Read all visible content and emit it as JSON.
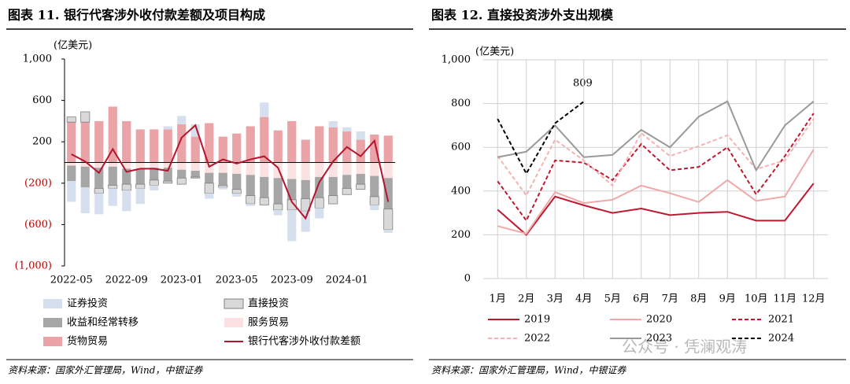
{
  "chart_data": [
    {
      "type": "bar",
      "title": "图表 11. 银行代客涉外收付款差额及项目构成",
      "unit": "(亿美元)",
      "categories": [
        "2022-05",
        null,
        null,
        null,
        "2022-09",
        null,
        null,
        null,
        "2023-01",
        null,
        null,
        null,
        "2023-05",
        null,
        null,
        null,
        "2023-09",
        null,
        null,
        null,
        "2024-01",
        null,
        null,
        null
      ],
      "ylim": [
        -1000,
        1000
      ],
      "yticks": [
        {
          "value": 1000,
          "label": "1,000"
        },
        600,
        200,
        {
          "value": -200,
          "label": "(200)"
        },
        {
          "value": -600,
          "label": "(600)"
        },
        {
          "value": -1000,
          "label": "(1,000)"
        }
      ],
      "series": [
        {
          "name": "证券投资",
          "type": "bar",
          "color": "#d5dfed",
          "values": [
            -200,
            -250,
            -200,
            -170,
            -200,
            -150,
            -50,
            30,
            80,
            120,
            -50,
            -20,
            -30,
            -20,
            140,
            -50,
            -300,
            -200,
            -100,
            60,
            40,
            80,
            -50,
            -30
          ]
        },
        {
          "name": "直接投资",
          "type": "bar",
          "color": "#d9d9d9",
          "stroke": "#7f7f7f",
          "values": [
            50,
            100,
            -50,
            -30,
            -60,
            -40,
            -50,
            -20,
            -60,
            -10,
            -100,
            -20,
            -40,
            -80,
            -70,
            -60,
            -100,
            -120,
            -100,
            -80,
            -60,
            -50,
            -80,
            -200
          ]
        },
        {
          "name": "收益和经常转移",
          "type": "bar",
          "color": "#a6a6a6",
          "values": [
            -150,
            -200,
            -200,
            -180,
            -150,
            -150,
            -120,
            -130,
            -80,
            -60,
            -100,
            -120,
            -150,
            -200,
            -200,
            -250,
            -200,
            -180,
            -200,
            -180,
            -130,
            -100,
            -200,
            -300
          ]
        },
        {
          "name": "服务贸易",
          "type": "bar",
          "color": "#fbe1e1",
          "values": [
            -30,
            -40,
            -50,
            -40,
            -60,
            -60,
            -50,
            -50,
            -70,
            -80,
            -100,
            -100,
            -110,
            -120,
            -140,
            -150,
            -160,
            -170,
            -140,
            -140,
            -120,
            -110,
            -130,
            -150
          ]
        },
        {
          "name": "货物贸易",
          "type": "bar",
          "color": "#eaa3a6",
          "values": [
            390,
            390,
            400,
            540,
            400,
            320,
            320,
            320,
            370,
            250,
            380,
            250,
            280,
            350,
            440,
            310,
            400,
            220,
            350,
            340,
            300,
            220,
            270,
            260
          ]
        },
        {
          "name": "银行代客涉外收付款差额",
          "type": "line",
          "color": "#b5142d",
          "values": [
            80,
            10,
            -100,
            130,
            -90,
            -60,
            -60,
            -80,
            240,
            360,
            -40,
            30,
            -10,
            30,
            60,
            -50,
            -380,
            -540,
            -190,
            10,
            150,
            60,
            210,
            -380
          ]
        }
      ],
      "source": "资料来源：国家外汇管理局，Wind，中银证券"
    },
    {
      "type": "line",
      "title": "图表 12. 直接投资涉外支出规模",
      "unit": "(亿美元)",
      "categories": [
        "1月",
        "2月",
        "3月",
        "4月",
        "5月",
        "6月",
        "7月",
        "8月",
        "9月",
        "10月",
        "11月",
        "12月"
      ],
      "ylim": [
        0,
        1000
      ],
      "yticks": [
        0,
        200,
        400,
        600,
        800,
        {
          "value": 1000,
          "label": "1,000"
        }
      ],
      "grid": true,
      "series": [
        {
          "name": "2019",
          "color": "#c0182f",
          "dash": false,
          "values": [
            315,
            200,
            375,
            335,
            300,
            320,
            290,
            300,
            305,
            265,
            265,
            435
          ]
        },
        {
          "name": "2020",
          "color": "#f0a9a9",
          "dash": false,
          "values": [
            240,
            205,
            395,
            345,
            360,
            425,
            390,
            350,
            450,
            355,
            375,
            590
          ]
        },
        {
          "name": "2021",
          "color": "#c0182f",
          "dash": true,
          "values": [
            445,
            265,
            540,
            530,
            450,
            615,
            495,
            510,
            600,
            385,
            560,
            755
          ]
        },
        {
          "name": "2022",
          "color": "#f4b3b3",
          "dash": true,
          "values": [
            560,
            380,
            635,
            540,
            425,
            665,
            560,
            605,
            655,
            500,
            540,
            730
          ]
        },
        {
          "name": "2023",
          "color": "#9a9a9a",
          "dash": false,
          "values": [
            555,
            580,
            700,
            555,
            565,
            680,
            600,
            740,
            810,
            495,
            700,
            810
          ]
        },
        {
          "name": "2024",
          "color": "#000000",
          "dash": true,
          "values": [
            730,
            480,
            710,
            809,
            null,
            null,
            null,
            null,
            null,
            null,
            null,
            null
          ]
        }
      ],
      "annotation": "809",
      "source": "资料来源：国家外汇管理局，Wind，中银证券"
    }
  ],
  "watermark": "公众号 · 凭澜观涛"
}
